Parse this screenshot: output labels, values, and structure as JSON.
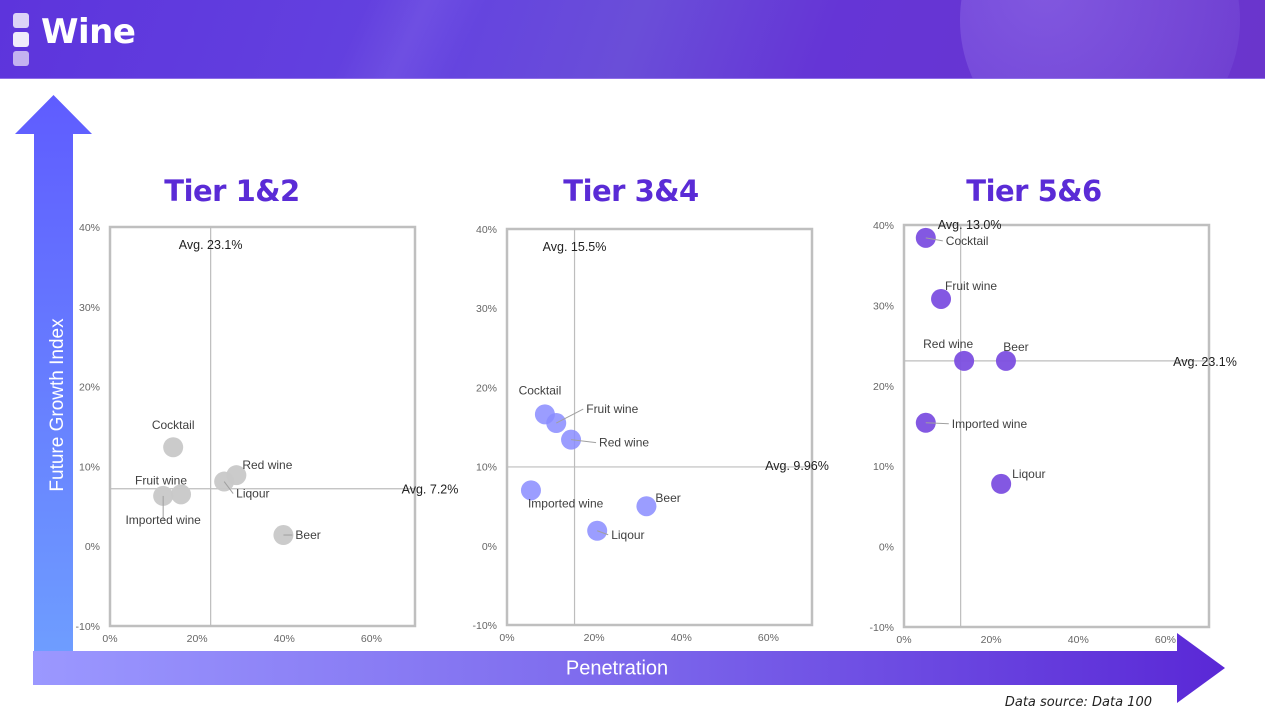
{
  "header": {
    "title": "Wine"
  },
  "axes": {
    "y_label": "Future Growth Index",
    "x_label": "Penetration"
  },
  "footer": {
    "source": "Data source: Data 100"
  },
  "colors": {
    "header_bg": "#5d34dc",
    "tier_title": "#5a2bd6",
    "tier12_bubble": "#c8c8c8",
    "tier34_bubble": "#8a8cff",
    "tier56_bubble": "#7c4fe0",
    "axis_line": "#bfbfbf"
  },
  "tiers": [
    {
      "title": "Tier 1&2"
    },
    {
      "title": "Tier 3&4"
    },
    {
      "title": "Tier 5&6"
    }
  ],
  "chart_data": [
    {
      "type": "scatter",
      "title": "Tier 1&2",
      "xlabel": "Penetration",
      "ylabel": "Future Growth Index",
      "xlim": [
        0,
        70
      ],
      "ylim": [
        -10,
        40
      ],
      "x_ticks": [
        "0%",
        "20%",
        "40%",
        "60%"
      ],
      "y_ticks": [
        "-10%",
        "0%",
        "10%",
        "20%",
        "30%",
        "40%"
      ],
      "grid": false,
      "avg_x": 23.1,
      "avg_x_label": "Avg. 23.1%",
      "avg_y": 7.2,
      "avg_y_label": "Avg. 7.2%",
      "color": "#c8c8c8",
      "points": [
        {
          "label": "Cocktail",
          "x": 14.5,
          "y": 12.4
        },
        {
          "label": "Red wine",
          "x": 29.0,
          "y": 8.9
        },
        {
          "label": "Liqour",
          "x": 26.2,
          "y": 8.1
        },
        {
          "label": "Fruit wine",
          "x": 16.3,
          "y": 6.5
        },
        {
          "label": "Imported wine",
          "x": 12.2,
          "y": 6.3
        },
        {
          "label": "Beer",
          "x": 39.8,
          "y": 1.4
        }
      ]
    },
    {
      "type": "scatter",
      "title": "Tier 3&4",
      "xlabel": "Penetration",
      "ylabel": "Future Growth Index",
      "xlim": [
        0,
        70
      ],
      "ylim": [
        -10,
        40
      ],
      "x_ticks": [
        "0%",
        "20%",
        "40%",
        "60%"
      ],
      "y_ticks": [
        "-10%",
        "0%",
        "10%",
        "20%",
        "30%",
        "40%"
      ],
      "grid": false,
      "avg_x": 15.5,
      "avg_x_label": "Avg. 15.5%",
      "avg_y": 9.96,
      "avg_y_label": "Avg. 9.96%",
      "color": "#8a8cff",
      "points": [
        {
          "label": "Cocktail",
          "x": 8.7,
          "y": 16.6
        },
        {
          "label": "Fruit wine",
          "x": 11.3,
          "y": 15.5
        },
        {
          "label": "Red wine",
          "x": 14.7,
          "y": 13.4
        },
        {
          "label": "Imported wine",
          "x": 5.5,
          "y": 7.0
        },
        {
          "label": "Beer",
          "x": 32.0,
          "y": 5.0
        },
        {
          "label": "Liqour",
          "x": 20.7,
          "y": 1.9
        }
      ]
    },
    {
      "type": "scatter",
      "title": "Tier 5&6",
      "xlabel": "Penetration",
      "ylabel": "Future Growth Index",
      "xlim": [
        0,
        70
      ],
      "ylim": [
        -10,
        40
      ],
      "x_ticks": [
        "0%",
        "20%",
        "40%",
        "60%"
      ],
      "y_ticks": [
        "-10%",
        "0%",
        "10%",
        "20%",
        "30%",
        "40%"
      ],
      "grid": false,
      "avg_x": 13.0,
      "avg_x_label": "Avg. 13.0%",
      "avg_y": 23.1,
      "avg_y_label": "Avg. 23.1%",
      "color": "#7c4fe0",
      "points": [
        {
          "label": "Cocktail",
          "x": 5.0,
          "y": 38.4
        },
        {
          "label": "Fruit wine",
          "x": 8.5,
          "y": 30.8
        },
        {
          "label": "Red wine",
          "x": 13.8,
          "y": 23.1
        },
        {
          "label": "Beer",
          "x": 23.4,
          "y": 23.1
        },
        {
          "label": "Imported wine",
          "x": 5.0,
          "y": 15.4
        },
        {
          "label": "Liqour",
          "x": 22.3,
          "y": 7.8
        }
      ]
    }
  ]
}
